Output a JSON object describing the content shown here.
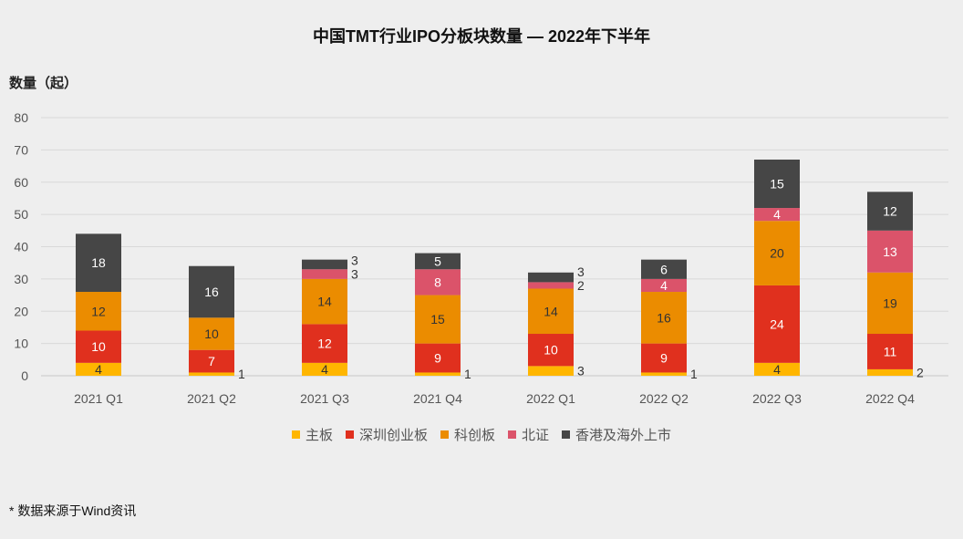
{
  "chart_data": {
    "type": "bar",
    "stacked": true,
    "title": "中国TMT行业IPO分板块数量 — 2022年下半年",
    "ylabel": "数量（起）",
    "xlabel": "",
    "ylim": [
      0,
      80
    ],
    "yticks": [
      0,
      10,
      20,
      30,
      40,
      50,
      60,
      70,
      80
    ],
    "grid": true,
    "legend_position": "bottom",
    "categories": [
      "2021 Q1",
      "2021 Q2",
      "2021 Q3",
      "2021 Q4",
      "2022 Q1",
      "2022 Q2",
      "2022 Q3",
      "2022 Q4"
    ],
    "series": [
      {
        "name": "主板",
        "color": "#FFB600",
        "label_color": "#333333",
        "values": [
          4,
          1,
          4,
          1,
          3,
          1,
          4,
          2
        ]
      },
      {
        "name": "深圳创业板",
        "color": "#E0301E",
        "label_color": "#ffffff",
        "values": [
          10,
          7,
          12,
          9,
          10,
          9,
          24,
          11
        ]
      },
      {
        "name": "科创板",
        "color": "#EB8C00",
        "label_color": "#333333",
        "values": [
          12,
          10,
          14,
          15,
          14,
          16,
          20,
          19
        ]
      },
      {
        "name": "北证",
        "color": "#DB536A",
        "label_color": "#ffffff",
        "values": [
          0,
          0,
          3,
          8,
          2,
          4,
          4,
          13
        ]
      },
      {
        "name": "香港及海外上市",
        "color": "#464646",
        "label_color": "#ffffff",
        "values": [
          18,
          16,
          3,
          5,
          3,
          6,
          15,
          12
        ]
      }
    ]
  },
  "footnote": "* 数据来源于Wind资讯"
}
